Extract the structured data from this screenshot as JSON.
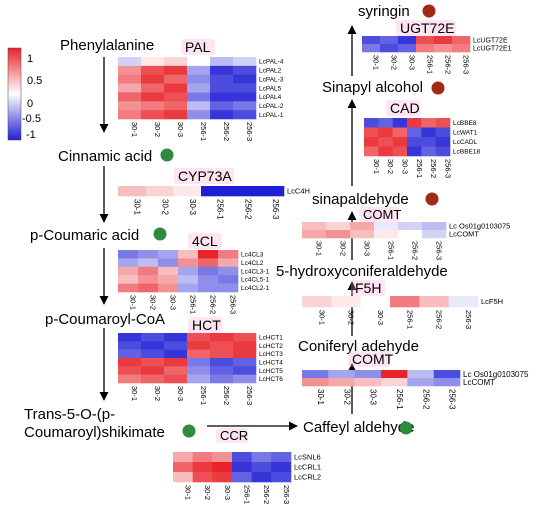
{
  "legend": {
    "ticks": [
      "1",
      "0.5",
      "0",
      "-0.5",
      "-1"
    ],
    "colors": {
      "high": "#e8232a",
      "mid": "#ffffff",
      "low": "#1f1fd6"
    }
  },
  "colors": {
    "arrow": "#000000",
    "green_dot": "#2e8b3e",
    "brown_dot": "#a12a16",
    "pink_glow": "#ff9fd8"
  },
  "compounds": [
    {
      "id": "phenylalanine",
      "label": "Phenylalanine"
    },
    {
      "id": "cinnamic",
      "label": "Cinnamic acid",
      "dot": "green"
    },
    {
      "id": "pcoumaric",
      "label": "p-Coumaric acid",
      "dot": "green"
    },
    {
      "id": "pcoumaroylcoa",
      "label": "p-Coumaroyl-CoA"
    },
    {
      "id": "trans5",
      "label": "Trans-5-O-(p-",
      "label2": "Coumaroyl)shikimate",
      "dot": "green"
    },
    {
      "id": "caffeyl",
      "label": "Caffeyl aldehyde",
      "dot": "green"
    },
    {
      "id": "coniferyl",
      "label": "Coniferyl adehyde"
    },
    {
      "id": "hydroxyconifer",
      "label": "5-hydroxyconiferaldehyde"
    },
    {
      "id": "sinapaldehyde",
      "label": "sinapaldehyde",
      "dot": "brown"
    },
    {
      "id": "sinapyl",
      "label": "Sinapyl alcohol",
      "dot": "brown"
    },
    {
      "id": "syringin",
      "label": "syringin",
      "dot": "brown"
    }
  ],
  "enzymes": [
    "PAL",
    "CYP73A",
    "4CL",
    "HCT",
    "CCR",
    "COMT",
    "F5H",
    "CAD",
    "COMT",
    "UGT72E"
  ],
  "samples": [
    "30-1",
    "30-2",
    "30-3",
    "256-1",
    "256-2",
    "256-3"
  ],
  "heatmaps": [
    {
      "id": "pal",
      "enzyme": "PAL",
      "genes": [
        "LcPAL-4",
        "LcPAL2",
        "LcPAL-3",
        "LcPAL5",
        "LcPAL4",
        "LcPAL-2",
        "LcPAL-1"
      ],
      "values": [
        [
          -0.2,
          0.1,
          0.2,
          0.0,
          -0.3,
          -0.2
        ],
        [
          0.5,
          0.8,
          0.9,
          -0.4,
          -0.9,
          -0.8
        ],
        [
          0.6,
          0.9,
          0.7,
          -0.5,
          -0.8,
          -0.9
        ],
        [
          0.4,
          0.7,
          0.9,
          -0.4,
          -0.8,
          -0.8
        ],
        [
          0.7,
          0.9,
          0.8,
          -0.6,
          -0.9,
          -0.9
        ],
        [
          0.5,
          0.6,
          0.7,
          -0.3,
          -0.7,
          -0.6
        ],
        [
          0.6,
          0.8,
          0.9,
          -0.5,
          -0.9,
          -0.8
        ]
      ]
    },
    {
      "id": "cyp73a",
      "enzyme": "CYP73A",
      "genes": [
        "LcC4H"
      ],
      "values": [
        [
          0.3,
          0.2,
          0.1,
          -1.0,
          -1.0,
          -1.0
        ]
      ]
    },
    {
      "id": "4cl",
      "enzyme": "4CL",
      "genes": [
        "Lc4CL3",
        "Lc4CL2",
        "Lc4CL3-1",
        "Lc4CL5-1",
        "Lc4CL2-1"
      ],
      "values": [
        [
          -0.6,
          -0.5,
          -0.4,
          0.3,
          1.0,
          0.6
        ],
        [
          -0.4,
          -0.3,
          -0.5,
          0.5,
          0.7,
          0.4
        ],
        [
          0.4,
          0.6,
          0.3,
          -0.4,
          -0.6,
          -0.5
        ],
        [
          0.3,
          0.5,
          0.4,
          -0.3,
          -0.5,
          -0.6
        ],
        [
          0.6,
          0.7,
          0.5,
          -0.4,
          -0.5,
          -0.5
        ]
      ]
    },
    {
      "id": "hct",
      "enzyme": "HCT",
      "genes": [
        "LcHCT1",
        "LcHCT2",
        "LcHCT3",
        "LcHCT4",
        "LcHCT5",
        "LcHCT6"
      ],
      "values": [
        [
          -0.9,
          -0.8,
          -0.9,
          0.8,
          0.9,
          0.8
        ],
        [
          -0.8,
          -0.9,
          -0.8,
          0.9,
          0.8,
          0.9
        ],
        [
          -0.7,
          -0.8,
          -0.9,
          0.7,
          0.8,
          0.9
        ],
        [
          0.9,
          0.8,
          0.9,
          -0.6,
          -0.8,
          -0.7
        ],
        [
          0.8,
          0.9,
          0.7,
          -0.5,
          -0.7,
          -0.8
        ],
        [
          0.6,
          0.7,
          0.8,
          -0.4,
          -0.6,
          -0.5
        ]
      ]
    },
    {
      "id": "ccr",
      "enzyme": "CCR",
      "genes": [
        "LcSNL6",
        "LcCRL1",
        "LcCRL2"
      ],
      "values": [
        [
          0.4,
          0.6,
          0.5,
          -0.8,
          -0.6,
          -0.7
        ],
        [
          0.7,
          0.9,
          1.0,
          -0.9,
          -0.8,
          -0.9
        ],
        [
          0.3,
          0.8,
          0.9,
          -0.7,
          -0.9,
          -0.8
        ]
      ]
    },
    {
      "id": "comt1",
      "enzyme": "COMT",
      "genes": [
        "Lc Os01g0103075",
        "LcCOMT"
      ],
      "values": [
        [
          -0.6,
          -0.4,
          -0.5,
          1.0,
          -0.3,
          -0.8
        ],
        [
          0.5,
          0.4,
          0.3,
          0.2,
          -0.4,
          -0.5
        ]
      ]
    },
    {
      "id": "f5h",
      "enzyme": "F5H",
      "genes": [
        "LcF5H"
      ],
      "values": [
        [
          0.2,
          0.1,
          0.0,
          0.6,
          0.3,
          -0.1
        ]
      ]
    },
    {
      "id": "comt2",
      "enzyme": "COMT",
      "genes": [
        "Lc Os01g0103075",
        "LcCOMT"
      ],
      "values": [
        [
          0.3,
          0.2,
          0.4,
          -0.1,
          -0.2,
          -0.3
        ],
        [
          0.4,
          0.5,
          0.3,
          0.1,
          0.0,
          -0.2
        ]
      ]
    },
    {
      "id": "cad",
      "enzyme": "CAD",
      "genes": [
        "LcBBE8",
        "LcWAT1",
        "LcCADL",
        "LcBBE18"
      ],
      "values": [
        [
          -0.8,
          -0.7,
          -0.9,
          0.9,
          0.7,
          0.8
        ],
        [
          0.8,
          0.9,
          0.7,
          -0.7,
          -0.9,
          -0.8
        ],
        [
          0.9,
          0.8,
          0.9,
          -0.8,
          -0.8,
          -0.9
        ],
        [
          0.7,
          0.9,
          0.8,
          -0.9,
          -0.7,
          -0.8
        ]
      ]
    },
    {
      "id": "ugt72e",
      "enzyme": "UGT72E",
      "genes": [
        "LcUGT72E",
        "LcUGT72E1"
      ],
      "values": [
        [
          -0.8,
          -0.7,
          -0.9,
          0.8,
          0.9,
          0.7
        ],
        [
          -0.6,
          -0.8,
          -0.7,
          0.6,
          0.5,
          0.6
        ]
      ]
    }
  ]
}
